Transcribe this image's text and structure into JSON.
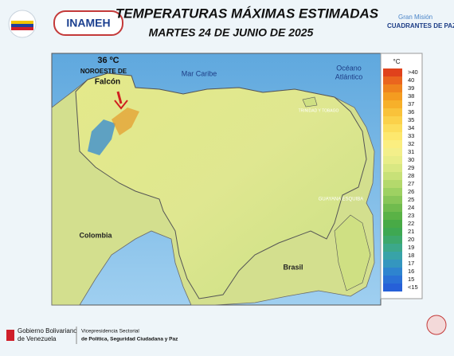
{
  "header": {
    "title": "TEMPERATURAS MÁXIMAS ESTIMADAS",
    "subtitle": "MARTES 24 DE JUNIO DE 2025",
    "left_logo": "INAMEH",
    "right_logo_top": "Gran Misión",
    "right_logo_main": "CUADRANTES DE PAZ"
  },
  "map": {
    "max_value": "36 ºC",
    "max_region_1": "NOROESTE DE",
    "max_region_2": "Falcón",
    "sea": "Mar Caribe",
    "ocean_1": "Océano",
    "ocean_2": "Atlántico",
    "west": "Colombia",
    "south": "Brasil",
    "east": "GUAYANA ESQUIBA",
    "islands": "TRINIDAD Y TOBAGO"
  },
  "legend": {
    "unit": "°C",
    "items": [
      {
        "label": ">40",
        "color": "#e0421c"
      },
      {
        "label": "40",
        "color": "#ea651e"
      },
      {
        "label": "39",
        "color": "#ef831d"
      },
      {
        "label": "38",
        "color": "#f49c20"
      },
      {
        "label": "37",
        "color": "#f7b02a"
      },
      {
        "label": "36",
        "color": "#f9c23a"
      },
      {
        "label": "35",
        "color": "#fbd14a"
      },
      {
        "label": "34",
        "color": "#fcde5c"
      },
      {
        "label": "33",
        "color": "#fde86e"
      },
      {
        "label": "32",
        "color": "#fbee80"
      },
      {
        "label": "31",
        "color": "#f3ef8a"
      },
      {
        "label": "30",
        "color": "#e8ed88"
      },
      {
        "label": "29",
        "color": "#d9e882"
      },
      {
        "label": "28",
        "color": "#c8e178"
      },
      {
        "label": "27",
        "color": "#b4d96c"
      },
      {
        "label": "26",
        "color": "#9ed162"
      },
      {
        "label": "25",
        "color": "#88c658"
      },
      {
        "label": "24",
        "color": "#70bb4e"
      },
      {
        "label": "23",
        "color": "#5ab246"
      },
      {
        "label": "22",
        "color": "#48aa46"
      },
      {
        "label": "21",
        "color": "#3ea852"
      },
      {
        "label": "20",
        "color": "#3da86c"
      },
      {
        "label": "19",
        "color": "#3ca88a"
      },
      {
        "label": "18",
        "color": "#38a3a8"
      },
      {
        "label": "17",
        "color": "#3496bf"
      },
      {
        "label": "16",
        "color": "#2e84cf"
      },
      {
        "label": "15",
        "color": "#2a71d6"
      },
      {
        "label": "<15",
        "color": "#2660d8"
      }
    ]
  },
  "footer": {
    "gov_1": "Gobierno Bolivariano",
    "gov_2": "de Venezuela",
    "vp_1": "Vicepresidencia Sectorial",
    "vp_2": "de Política, Seguridad Ciudadana y Paz"
  }
}
